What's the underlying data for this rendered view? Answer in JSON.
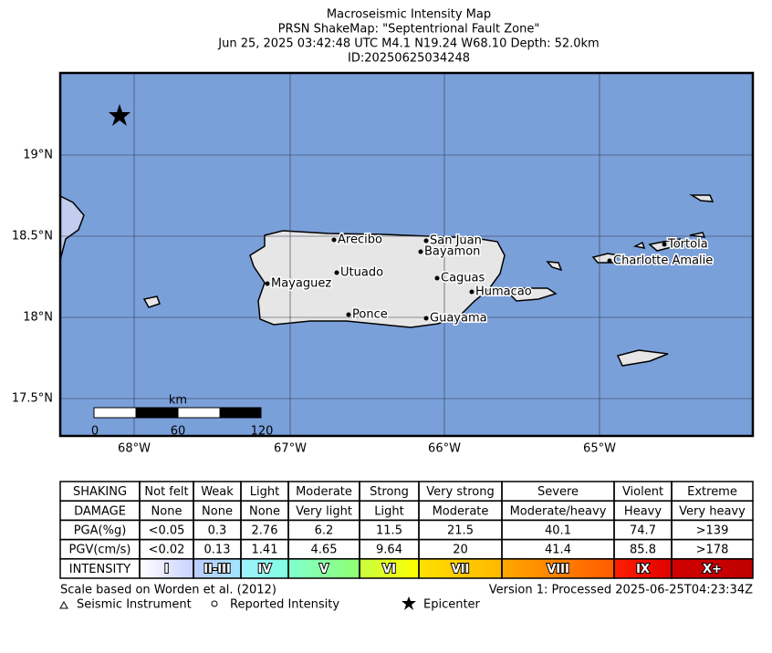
{
  "header": {
    "title_lines": [
      "Macroseismic Intensity Map",
      "PRSN ShakeMap: \"Septentrional Fault Zone\"",
      "Jun 25, 2025 03:42:48 UTC M4.1 N19.24 W68.10 Depth: 52.0km",
      "ID:20250625034248"
    ]
  },
  "map": {
    "lat_labels": [
      "19°N",
      "18.5°N",
      "18°N",
      "17.5°N"
    ],
    "lon_labels": [
      "68°W",
      "67°W",
      "66°W",
      "65°W"
    ],
    "cities": [
      "Arecibo",
      "San Juan",
      "Bayamon",
      "Utuado",
      "Caguas",
      "Mayaguez",
      "Humacao",
      "Ponce",
      "Guayama",
      "Tortola",
      "Charlotte Amalie"
    ],
    "scale_bar": {
      "unit": "km",
      "labels": [
        "0",
        "60",
        "120"
      ]
    }
  },
  "table": {
    "rows": [
      [
        "SHAKING",
        "Not felt",
        "Weak",
        "Light",
        "Moderate",
        "Strong",
        "Very strong",
        "Severe",
        "Violent",
        "Extreme"
      ],
      [
        "DAMAGE",
        "None",
        "None",
        "None",
        "Very light",
        "Light",
        "Moderate",
        "Moderate/heavy",
        "Heavy",
        "Very heavy"
      ],
      [
        "PGA(%g)",
        "<0.05",
        "0.3",
        "2.76",
        "6.2",
        "11.5",
        "21.5",
        "40.1",
        "74.7",
        ">139"
      ],
      [
        "PGV(cm/s)",
        "<0.02",
        "0.13",
        "1.41",
        "4.65",
        "9.64",
        "20",
        "41.4",
        "85.8",
        ">178"
      ],
      [
        "INTENSITY",
        "I",
        "II-III",
        "IV",
        "V",
        "VI",
        "VII",
        "VIII",
        "IX",
        "X+"
      ]
    ]
  },
  "footer": {
    "scale_note": "Scale based on Worden et al. (2012)",
    "version": "Version 1: Processed 2025-06-25T04:23:34Z",
    "legend": [
      "Seismic Instrument",
      "Reported Intensity",
      "Epicenter"
    ]
  }
}
